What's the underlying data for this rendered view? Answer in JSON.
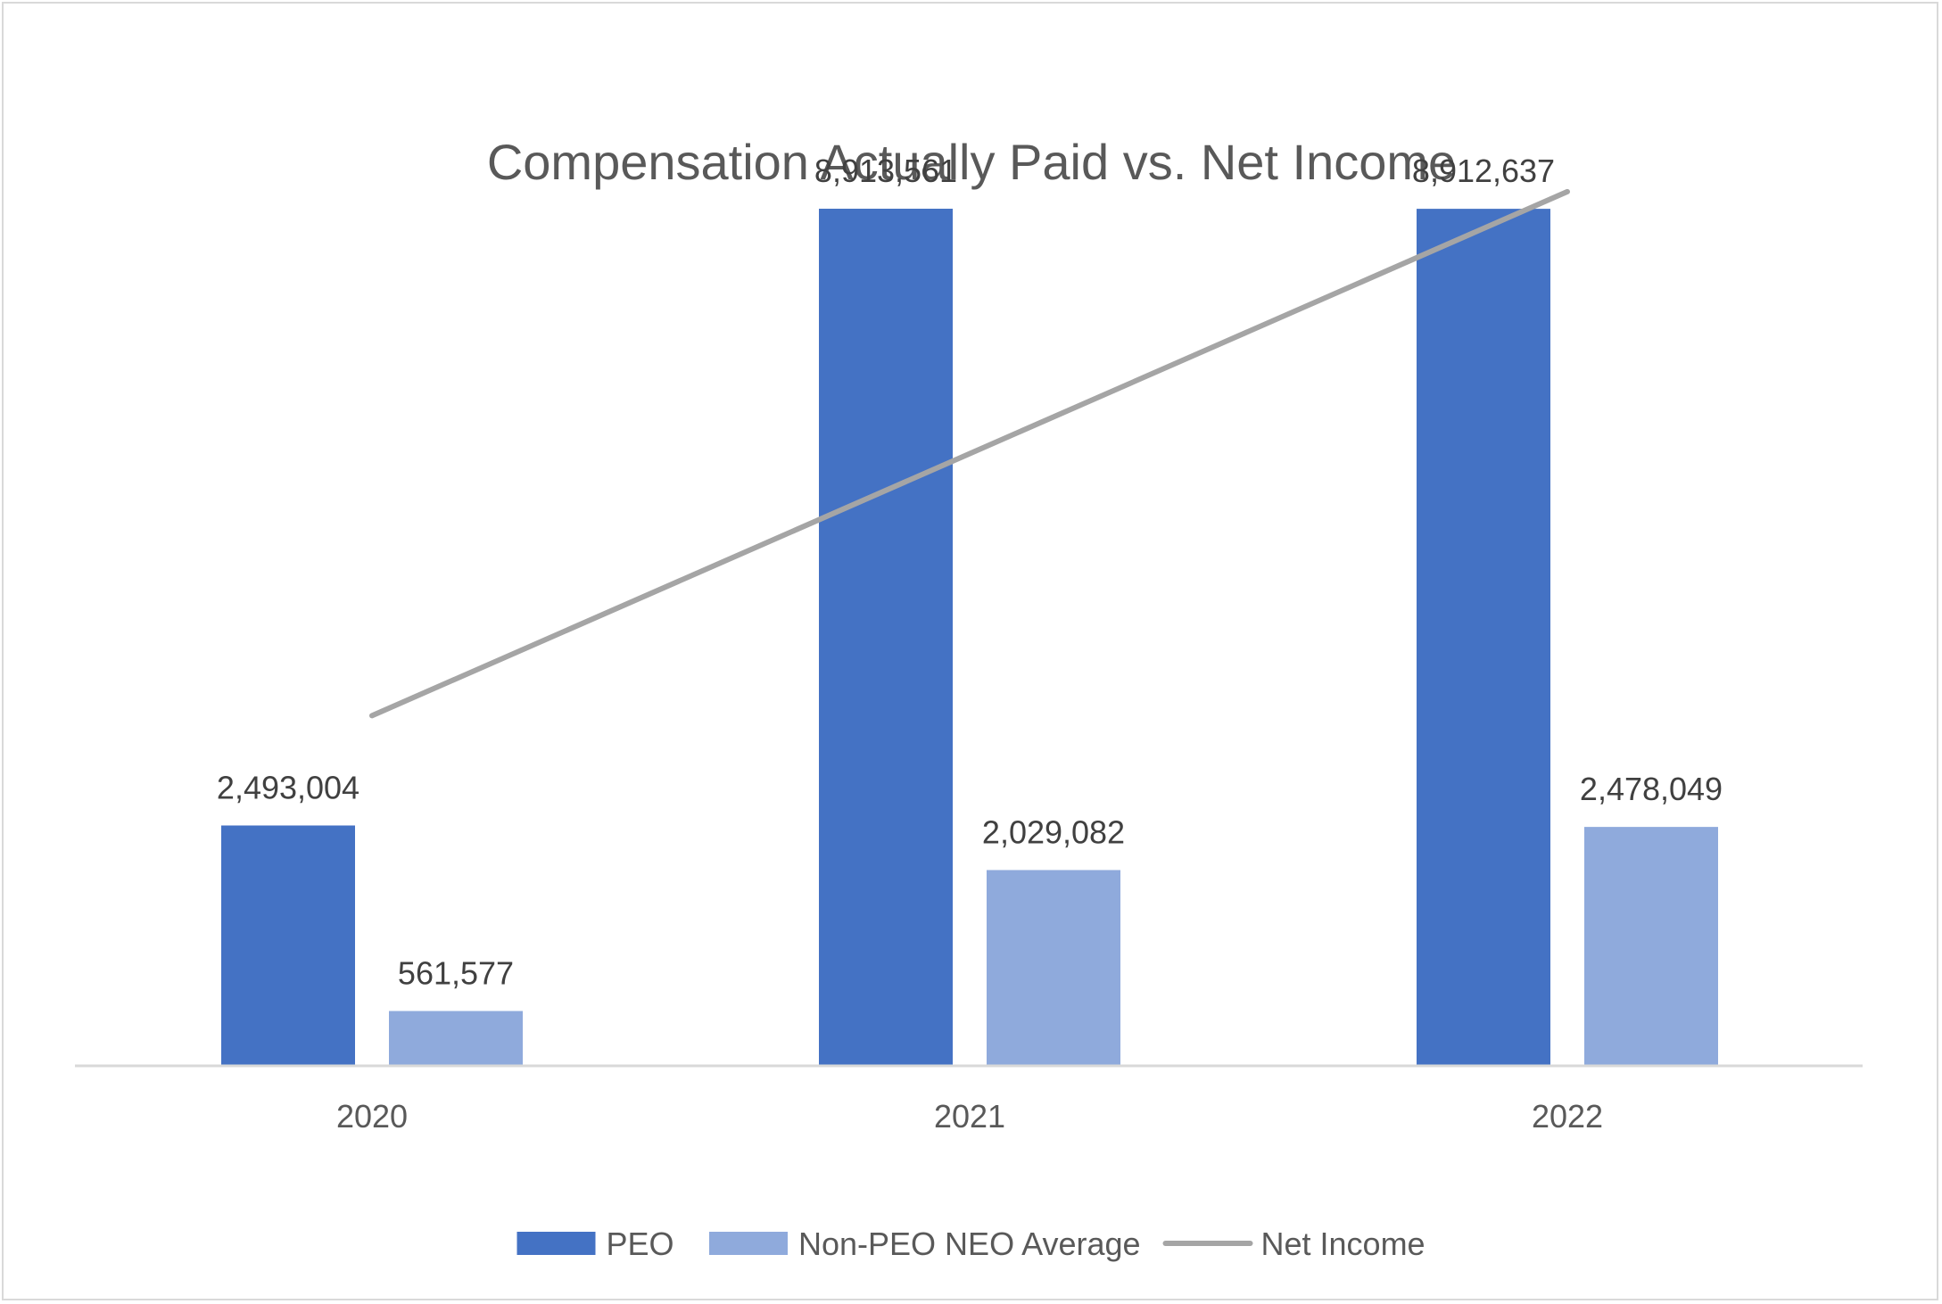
{
  "chart_data": {
    "type": "bar",
    "title": "Compensation Actually Paid vs. Net Income",
    "categories": [
      "2020",
      "2021",
      "2022"
    ],
    "series": [
      {
        "name": "PEO",
        "kind": "bar",
        "color": "#4472c4",
        "values": [
          2493004,
          8913561,
          8912637
        ],
        "labels": [
          "2,493,004",
          "8,913,561",
          "8,912,637"
        ]
      },
      {
        "name": "Non-PEO NEO Average",
        "kind": "bar",
        "color": "#8faadc",
        "values": [
          561577,
          2029082,
          2478049
        ],
        "labels": [
          "561,577",
          "2,029,082",
          "2,478,049"
        ]
      },
      {
        "name": "Net Income",
        "kind": "line",
        "color": "#a5a5a5",
        "values": [
          4.0,
          7.0,
          10.0
        ]
      }
    ],
    "bar_ylim": [
      0,
      10000000
    ],
    "line_ylim": [
      0,
      11
    ],
    "secondary_axis_shown": false,
    "grid": false,
    "legend": "bottom"
  }
}
